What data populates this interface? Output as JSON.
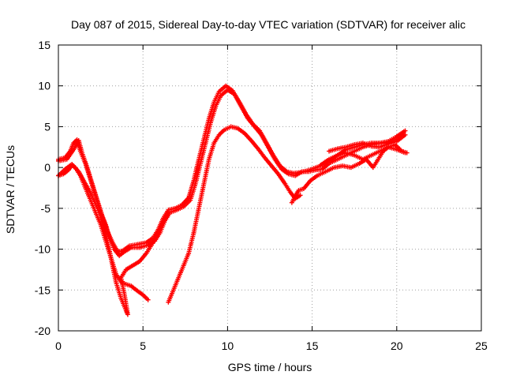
{
  "chart_data": {
    "type": "scatter",
    "title": "Day 087 of 2015, Sidereal Day-to-day VTEC variation (SDTVAR) for receiver alic",
    "xlabel": "GPS time / hours",
    "ylabel": "SDTVAR / TECUs",
    "xlim": [
      0,
      25
    ],
    "ylim": [
      -20,
      15
    ],
    "xticks": [
      "0",
      "5",
      "10",
      "15",
      "20",
      "25"
    ],
    "yticks": [
      "15",
      "10",
      "5",
      "0",
      "-5",
      "-10",
      "-15",
      "-20"
    ],
    "grid": true,
    "marker": "+",
    "series": [
      {
        "color": "#ff0000",
        "tracks": [
          [
            [
              0.0,
              1.0
            ],
            [
              0.4,
              1.2
            ],
            [
              0.7,
              2.0
            ],
            [
              0.9,
              3.0
            ],
            [
              1.1,
              3.4
            ],
            [
              1.3,
              2.0
            ],
            [
              1.6,
              0.5
            ],
            [
              1.9,
              -1.5
            ],
            [
              2.2,
              -3.5
            ],
            [
              2.5,
              -5.5
            ],
            [
              2.8,
              -7.0
            ],
            [
              3.0,
              -8.5
            ],
            [
              3.3,
              -10.0
            ],
            [
              3.6,
              -10.8
            ],
            [
              3.9,
              -10.3
            ],
            [
              4.3,
              -9.8
            ],
            [
              4.8,
              -9.8
            ],
            [
              5.3,
              -9.5
            ],
            [
              5.7,
              -9.0
            ],
            [
              6.0,
              -8.0
            ],
            [
              6.3,
              -6.5
            ],
            [
              6.6,
              -5.5
            ],
            [
              7.0,
              -5.2
            ],
            [
              7.4,
              -4.8
            ],
            [
              7.8,
              -4.0
            ],
            [
              8.1,
              -2.0
            ],
            [
              8.4,
              0.5
            ],
            [
              8.7,
              3.0
            ],
            [
              9.0,
              5.5
            ],
            [
              9.3,
              7.5
            ],
            [
              9.6,
              8.8
            ],
            [
              10.0,
              9.5
            ],
            [
              10.4,
              9.0
            ],
            [
              10.8,
              7.5
            ],
            [
              11.2,
              6.0
            ],
            [
              11.6,
              5.0
            ],
            [
              12.0,
              4.0
            ],
            [
              12.4,
              2.5
            ],
            [
              12.8,
              1.0
            ],
            [
              13.2,
              -0.2
            ],
            [
              13.6,
              -0.8
            ],
            [
              14.0,
              -1.0
            ],
            [
              14.4,
              -0.5
            ],
            [
              14.8,
              -0.5
            ],
            [
              15.2,
              -0.3
            ],
            [
              15.6,
              -0.2
            ],
            [
              16.0,
              0.5
            ],
            [
              16.5,
              1.0
            ],
            [
              17.0,
              1.5
            ],
            [
              17.5,
              2.0
            ],
            [
              18.0,
              2.5
            ],
            [
              18.5,
              2.8
            ],
            [
              19.0,
              3.0
            ],
            [
              19.5,
              3.2
            ],
            [
              20.0,
              3.8
            ],
            [
              20.5,
              4.5
            ]
          ],
          [
            [
              0.0,
              0.8
            ],
            [
              0.5,
              1.0
            ],
            [
              0.9,
              2.2
            ],
            [
              1.2,
              3.3
            ],
            [
              1.4,
              1.8
            ],
            [
              1.7,
              0.0
            ],
            [
              2.0,
              -2.0
            ],
            [
              2.3,
              -4.0
            ],
            [
              2.6,
              -6.0
            ],
            [
              2.9,
              -7.8
            ],
            [
              3.2,
              -9.2
            ],
            [
              3.5,
              -10.3
            ],
            [
              3.8,
              -10.2
            ],
            [
              4.2,
              -9.6
            ],
            [
              4.7,
              -9.4
            ],
            [
              5.2,
              -9.2
            ],
            [
              5.6,
              -8.6
            ],
            [
              5.9,
              -7.6
            ],
            [
              6.2,
              -6.2
            ],
            [
              6.5,
              -5.2
            ],
            [
              6.9,
              -5.0
            ],
            [
              7.3,
              -4.6
            ],
            [
              7.7,
              -3.7
            ],
            [
              8.0,
              -1.6
            ],
            [
              8.3,
              1.0
            ],
            [
              8.6,
              3.5
            ],
            [
              8.9,
              6.0
            ],
            [
              9.2,
              8.0
            ],
            [
              9.5,
              9.3
            ],
            [
              9.9,
              10.0
            ],
            [
              10.3,
              9.4
            ],
            [
              10.7,
              8.0
            ],
            [
              11.1,
              6.5
            ],
            [
              11.5,
              5.3
            ],
            [
              11.9,
              4.5
            ],
            [
              12.3,
              3.0
            ],
            [
              12.7,
              1.5
            ],
            [
              13.1,
              0.2
            ],
            [
              13.5,
              -0.5
            ],
            [
              13.9,
              -0.7
            ],
            [
              14.3,
              -0.6
            ],
            [
              14.7,
              -0.4
            ],
            [
              15.1,
              -0.1
            ],
            [
              15.5,
              0.2
            ],
            [
              16.0,
              0.8
            ],
            [
              16.5,
              1.5
            ],
            [
              17.0,
              2.2
            ],
            [
              17.5,
              2.5
            ],
            [
              18.0,
              2.8
            ],
            [
              18.5,
              3.0
            ],
            [
              19.0,
              3.0
            ],
            [
              19.5,
              3.0
            ],
            [
              20.0,
              3.5
            ],
            [
              20.4,
              4.2
            ]
          ],
          [
            [
              0.0,
              -1.0
            ],
            [
              0.3,
              -0.8
            ],
            [
              0.6,
              -0.3
            ],
            [
              0.8,
              0.3
            ],
            [
              1.0,
              0.0
            ],
            [
              1.3,
              -1.0
            ],
            [
              1.6,
              -2.5
            ],
            [
              1.9,
              -4.0
            ],
            [
              2.2,
              -5.5
            ],
            [
              2.5,
              -7.0
            ],
            [
              2.8,
              -9.0
            ],
            [
              3.1,
              -11.0
            ],
            [
              3.4,
              -13.0
            ],
            [
              3.7,
              -14.0
            ],
            [
              4.0,
              -14.3
            ],
            [
              4.3,
              -14.5
            ],
            [
              4.6,
              -15.0
            ],
            [
              5.0,
              -15.6
            ],
            [
              5.3,
              -16.2
            ]
          ],
          [
            [
              6.5,
              -16.5
            ],
            [
              6.8,
              -15.0
            ],
            [
              7.1,
              -13.5
            ],
            [
              7.4,
              -12.0
            ],
            [
              7.7,
              -10.5
            ],
            [
              8.0,
              -8.0
            ],
            [
              8.3,
              -5.0
            ],
            [
              8.6,
              -2.0
            ],
            [
              8.9,
              1.0
            ],
            [
              9.2,
              3.0
            ],
            [
              9.5,
              4.0
            ],
            [
              9.8,
              4.6
            ],
            [
              10.2,
              5.0
            ],
            [
              10.6,
              4.8
            ],
            [
              11.0,
              4.2
            ],
            [
              11.4,
              3.3
            ],
            [
              11.8,
              2.3
            ],
            [
              12.2,
              1.2
            ],
            [
              12.6,
              0.2
            ],
            [
              13.0,
              -0.8
            ],
            [
              13.4,
              -2.0
            ],
            [
              13.7,
              -3.0
            ],
            [
              14.0,
              -3.8
            ],
            [
              14.3,
              -3.4
            ]
          ],
          [
            [
              0.0,
              -1.0
            ],
            [
              0.4,
              -0.2
            ],
            [
              0.8,
              0.4
            ],
            [
              1.2,
              -0.5
            ],
            [
              1.6,
              -2.0
            ],
            [
              2.0,
              -3.5
            ],
            [
              2.4,
              -5.5
            ],
            [
              2.8,
              -8.0
            ],
            [
              3.1,
              -11.0
            ],
            [
              3.4,
              -14.0
            ],
            [
              3.7,
              -16.0
            ],
            [
              4.0,
              -17.5
            ],
            [
              4.1,
              -18.0
            ],
            [
              3.9,
              -15.5
            ],
            [
              3.7,
              -13.5
            ],
            [
              4.0,
              -12.5
            ],
            [
              4.4,
              -12.0
            ],
            [
              4.8,
              -11.5
            ],
            [
              5.2,
              -10.5
            ],
            [
              5.5,
              -9.5
            ],
            [
              5.8,
              -8.5
            ],
            [
              6.1,
              -7.0
            ],
            [
              6.4,
              -6.0
            ]
          ],
          [
            [
              13.8,
              -4.3
            ],
            [
              14.0,
              -3.5
            ],
            [
              14.2,
              -2.8
            ],
            [
              14.5,
              -2.6
            ],
            [
              14.9,
              -1.6
            ],
            [
              15.3,
              -1.0
            ],
            [
              15.8,
              -0.5
            ],
            [
              16.3,
              0.0
            ],
            [
              16.8,
              0.2
            ],
            [
              17.3,
              0.0
            ],
            [
              17.8,
              0.5
            ],
            [
              18.2,
              1.0
            ],
            [
              18.6,
              0.0
            ],
            [
              18.9,
              1.0
            ],
            [
              19.2,
              2.0
            ],
            [
              19.5,
              2.5
            ],
            [
              19.9,
              2.8
            ],
            [
              20.3,
              2.0
            ],
            [
              20.6,
              1.8
            ]
          ],
          [
            [
              15.5,
              0.3
            ],
            [
              16.0,
              1.0
            ],
            [
              16.5,
              1.5
            ],
            [
              17.0,
              1.8
            ],
            [
              17.5,
              1.5
            ],
            [
              18.0,
              1.0
            ],
            [
              18.5,
              1.5
            ],
            [
              19.0,
              2.0
            ],
            [
              19.5,
              2.5
            ],
            [
              20.0,
              2.2
            ],
            [
              20.5,
              1.8
            ]
          ],
          [
            [
              16.0,
              2.0
            ],
            [
              16.5,
              2.3
            ],
            [
              17.0,
              2.5
            ],
            [
              17.5,
              2.8
            ],
            [
              18.0,
              3.0
            ],
            [
              18.5,
              2.6
            ],
            [
              19.0,
              2.5
            ],
            [
              19.5,
              2.9
            ],
            [
              20.0,
              3.2
            ],
            [
              20.5,
              4.0
            ]
          ]
        ]
      }
    ]
  }
}
